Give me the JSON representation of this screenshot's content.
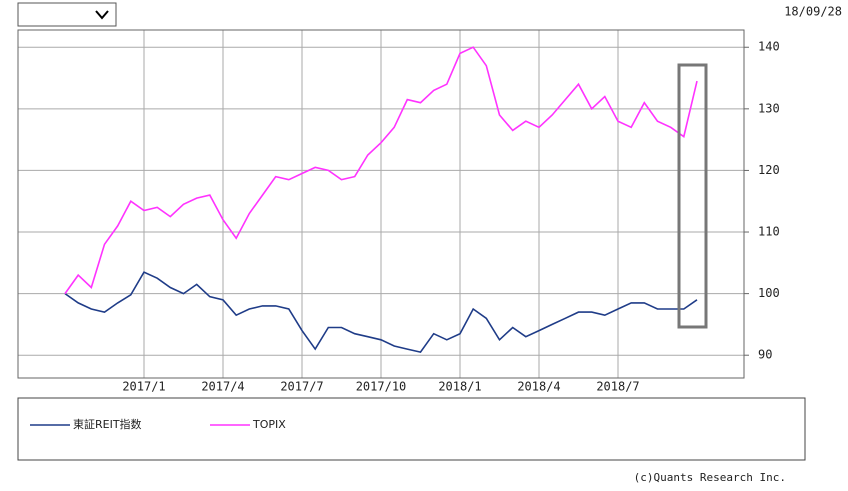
{
  "chart_data": {
    "type": "line",
    "date_label": "18/09/28",
    "credit": "(c)Quants Research Inc.",
    "categories": [
      null,
      null,
      null,
      null,
      null,
      null,
      "2017/1",
      null,
      null,
      null,
      null,
      null,
      "2017/4",
      null,
      null,
      null,
      null,
      null,
      "2017/7",
      null,
      null,
      null,
      null,
      null,
      "2017/10",
      null,
      null,
      null,
      null,
      null,
      "2018/1",
      null,
      null,
      null,
      null,
      null,
      "2018/4",
      null,
      null,
      null,
      null,
      null,
      "2018/7",
      null,
      null,
      null,
      null,
      null,
      null
    ],
    "series": [
      {
        "name": "東証REIT指数",
        "color": "#1f3c88",
        "values": [
          100,
          98.5,
          97.5,
          97,
          98.5,
          99.8,
          103.5,
          102.5,
          101,
          100,
          101.5,
          99.5,
          99,
          96.5,
          97.5,
          98,
          98,
          97.5,
          94,
          91,
          94.5,
          94.5,
          93.5,
          93,
          92.5,
          91.5,
          91,
          90.5,
          93.5,
          92.5,
          93.5,
          97.5,
          96,
          92.5,
          94.5,
          93,
          94,
          95,
          96,
          97,
          97,
          96.5,
          97.5,
          98.5,
          98.5,
          97.5,
          97.5,
          97.5,
          99
        ]
      },
      {
        "name": "TOPIX",
        "color": "#ff33ff",
        "values": [
          100,
          103,
          101,
          108,
          111,
          115,
          113.5,
          114,
          112.5,
          114.5,
          115.5,
          116,
          112,
          109,
          113,
          116,
          119,
          118.5,
          119.5,
          120.5,
          120,
          118.5,
          119,
          122.5,
          124.5,
          127,
          131.5,
          131,
          133,
          134,
          139,
          140,
          137,
          129,
          126.5,
          128,
          127,
          129,
          131.5,
          134,
          130,
          132,
          128,
          127,
          131,
          128,
          127,
          125.5,
          134.5
        ]
      }
    ],
    "ylim": [
      86.3,
      142.8
    ],
    "yticks": [
      90,
      100,
      110,
      120,
      130,
      140
    ],
    "grid": true
  }
}
